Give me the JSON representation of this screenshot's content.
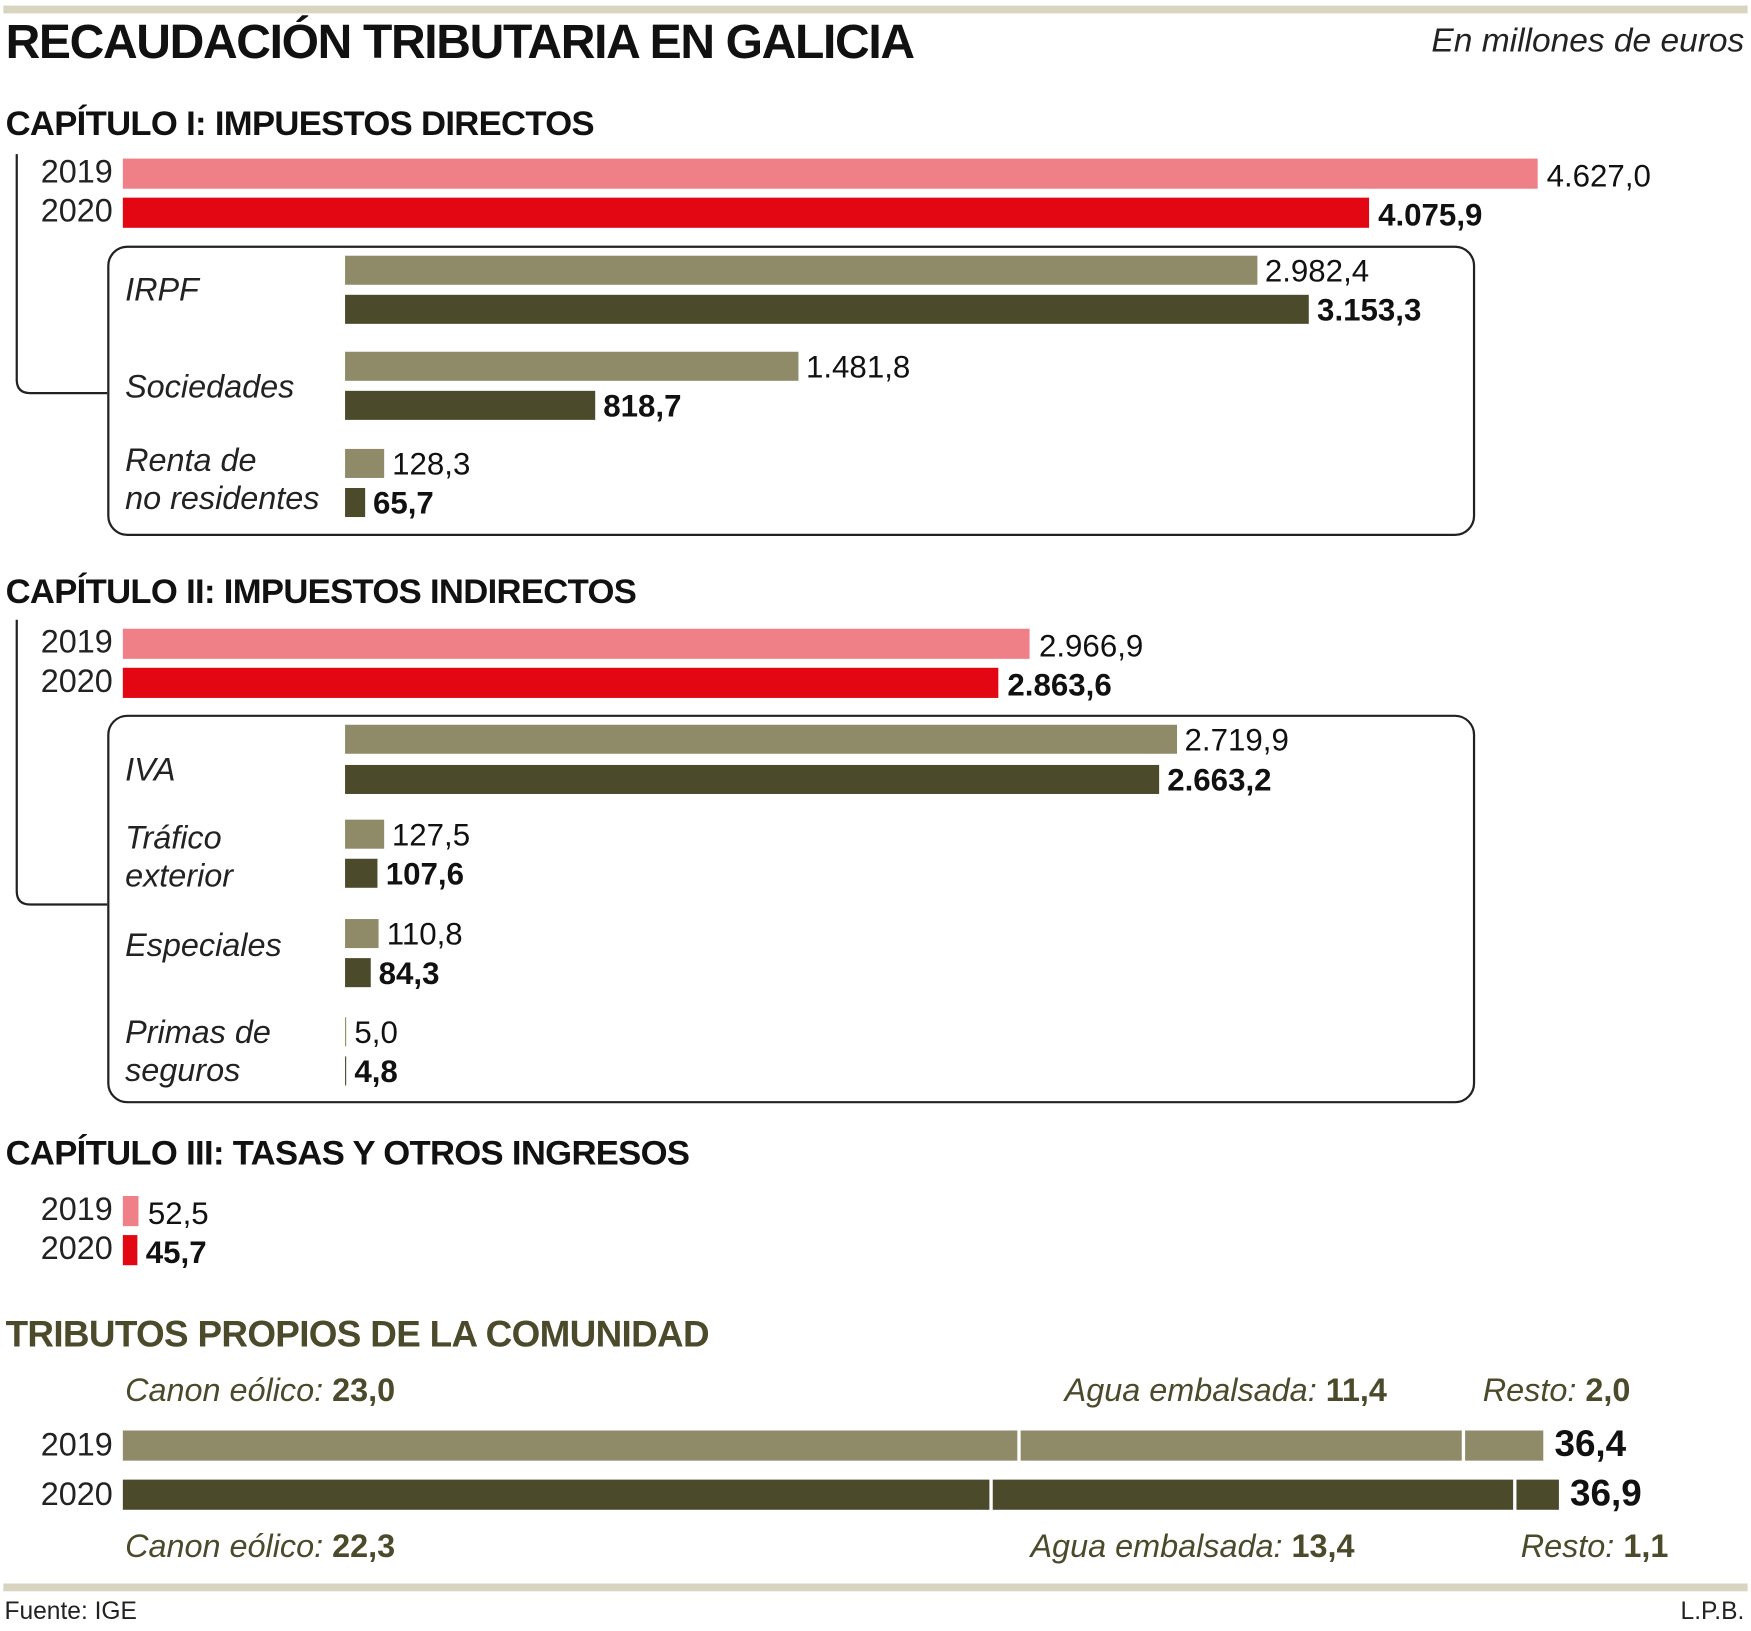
{
  "title": "RECAUDACIÓN TRIBUTARIA EN GALICIA",
  "unit": "En millones de euros",
  "source": "Fuente: IGE",
  "credit": "L.P.B.",
  "colors": {
    "y2019": "#f08088",
    "y2020": "#e30613",
    "sub2019": "#8f8b68",
    "sub2020": "#4b4a2b",
    "rule": "#d8d4c0"
  },
  "chart_data": {
    "type": "bar",
    "title": "RECAUDACIÓN TRIBUTARIA EN GALICIA",
    "unit": "En millones de euros",
    "years": [
      "2019",
      "2020"
    ],
    "sections": [
      {
        "heading": "CAPÍTULO I: IMPUESTOS DIRECTOS",
        "totals": [
          4627.0,
          4075.9
        ],
        "total_labels": [
          "4.627,0",
          "4.075,9"
        ],
        "breakdown": [
          {
            "label": [
              "IRPF"
            ],
            "values": [
              2982.4,
              3153.3
            ],
            "value_labels": [
              "2.982,4",
              "3.153,3"
            ]
          },
          {
            "label": [
              "Sociedades"
            ],
            "values": [
              1481.8,
              818.7
            ],
            "value_labels": [
              "1.481,8",
              "818,7"
            ]
          },
          {
            "label": [
              "Renta de",
              "no residentes"
            ],
            "values": [
              128.3,
              65.7
            ],
            "value_labels": [
              "128,3",
              "65,7"
            ]
          }
        ]
      },
      {
        "heading": "CAPÍTULO II: IMPUESTOS INDIRECTOS",
        "totals": [
          2966.9,
          2863.6
        ],
        "total_labels": [
          "2.966,9",
          "2.863,6"
        ],
        "breakdown": [
          {
            "label": [
              "IVA"
            ],
            "values": [
              2719.9,
              2663.2
            ],
            "value_labels": [
              "2.719,9",
              "2.663,2"
            ]
          },
          {
            "label": [
              "Tráfico",
              "exterior"
            ],
            "values": [
              127.5,
              107.6
            ],
            "value_labels": [
              "127,5",
              "107,6"
            ]
          },
          {
            "label": [
              "Especiales"
            ],
            "values": [
              110.8,
              84.3
            ],
            "value_labels": [
              "110,8",
              "84,3"
            ]
          },
          {
            "label": [
              "Primas de",
              "seguros"
            ],
            "values": [
              5.0,
              4.8
            ],
            "value_labels": [
              "5,0",
              "4,8"
            ]
          }
        ]
      },
      {
        "heading": "CAPÍTULO III: TASAS Y OTROS INGRESOS",
        "totals": [
          52.5,
          45.7
        ],
        "total_labels": [
          "52,5",
          "45,7"
        ],
        "breakdown": []
      }
    ],
    "own_taxes": {
      "heading": "TRIBUTOS PROPIOS DE LA COMUNIDAD",
      "totals": [
        36.4,
        36.9
      ],
      "total_labels": [
        "36,4",
        "36,9"
      ],
      "segments": [
        {
          "name": "Canon eólico:",
          "values": [
            23.0,
            22.3
          ],
          "value_labels": [
            "23,0",
            "22,3"
          ]
        },
        {
          "name": "Agua embalsada:",
          "values": [
            11.4,
            13.4
          ],
          "value_labels": [
            "11,4",
            "13,4"
          ]
        },
        {
          "name": "Resto:",
          "values": [
            2.0,
            1.1
          ],
          "value_labels": [
            "2,0",
            "1,1"
          ]
        }
      ]
    }
  }
}
